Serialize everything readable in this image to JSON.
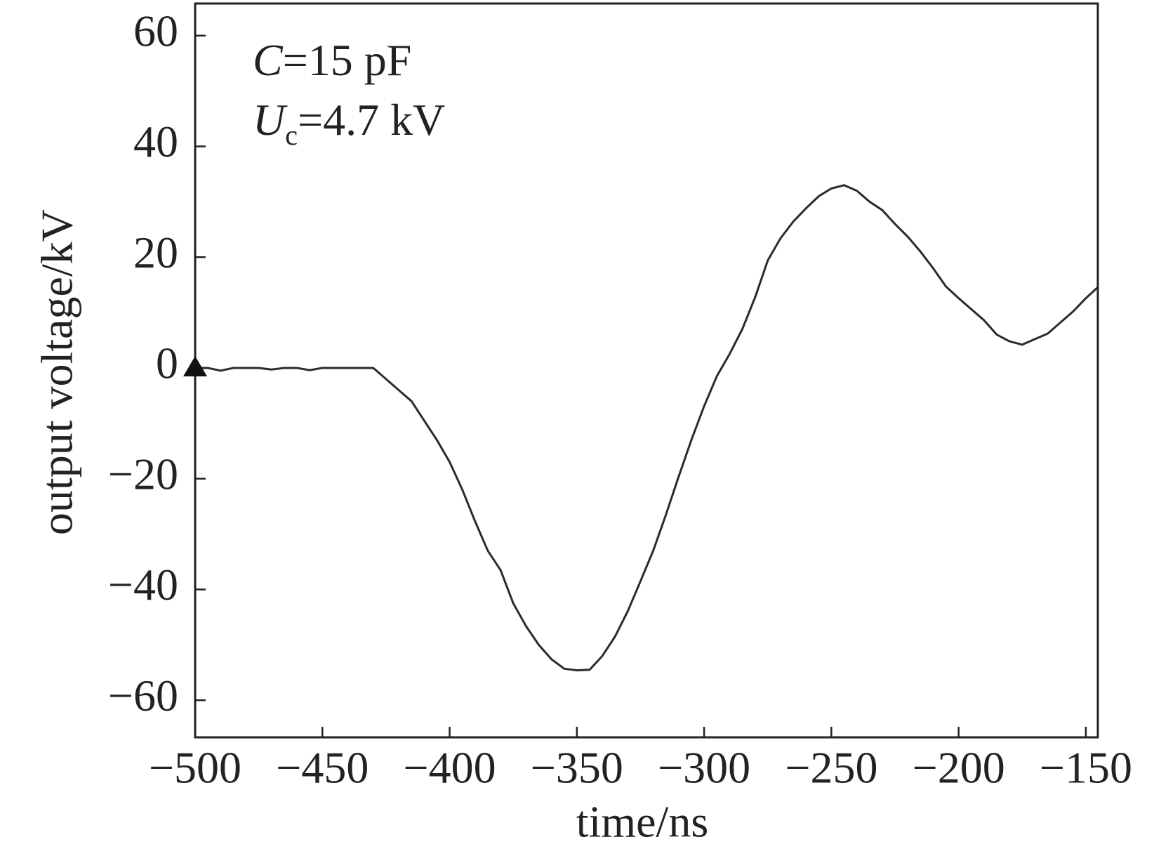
{
  "chart_data": {
    "type": "line",
    "x_label": "time/ns",
    "y_label": "output voltage/kV",
    "annotations": [
      {
        "italic": "C",
        "text": "=15 pF"
      },
      {
        "italic": "U",
        "sub": "c",
        "text": "=4.7 kV"
      }
    ],
    "marker": {
      "x": -500,
      "y": 0,
      "shape": "triangle"
    },
    "x": [
      -500,
      -495,
      -490,
      -485,
      -480,
      -475,
      -470,
      -465,
      -460,
      -455,
      -450,
      -445,
      -440,
      -435,
      -430,
      -425,
      -420,
      -415,
      -410,
      -405,
      -400,
      -395,
      -390,
      -385,
      -380,
      -375,
      -370,
      -365,
      -360,
      -355,
      -350,
      -345,
      -340,
      -335,
      -330,
      -325,
      -320,
      -315,
      -310,
      -305,
      -300,
      -295,
      -290,
      -285,
      -280,
      -275,
      -270,
      -265,
      -260,
      -255,
      -250,
      -245,
      -240,
      -235,
      -230,
      -225,
      -220,
      -215,
      -210,
      -205,
      -200,
      -195,
      -190,
      -185,
      -180,
      -175,
      -170,
      -165,
      -160,
      -155,
      -150,
      -145
    ],
    "series": [
      {
        "color": "#2b2b2b",
        "values": [
          0,
          0,
          -0.5,
          0,
          0,
          0,
          -0.3,
          0,
          0,
          -0.4,
          0,
          0,
          0,
          0,
          0,
          -2,
          -4,
          -6,
          -9.5,
          -13,
          -17,
          -22,
          -27.7,
          -33,
          -36.5,
          -42.5,
          -46.6,
          -50,
          -52.6,
          -54.3,
          -54.6,
          -54.5,
          -52,
          -48.5,
          -43.9,
          -38.5,
          -33,
          -26.5,
          -19.6,
          -13,
          -6.9,
          -1.5,
          2.5,
          7,
          12.7,
          19.4,
          23.4,
          26.4,
          28.8,
          31,
          32.4,
          33,
          32,
          30,
          28.5,
          26,
          23.7,
          21,
          18,
          14.7,
          12.6,
          10.6,
          8.6,
          6,
          4.8,
          4.2,
          5.2,
          6.2,
          8.2,
          10.2,
          12.6,
          14.7
        ]
      }
    ],
    "xlim": [
      -500,
      -145.3
    ],
    "ylim": [
      -66.7,
      65.8
    ],
    "xticks": [
      {
        "value": -500,
        "label": "−500"
      },
      {
        "value": -450,
        "label": "−450"
      },
      {
        "value": -400,
        "label": "−400"
      },
      {
        "value": -350,
        "label": "−350"
      },
      {
        "value": -300,
        "label": "−300"
      },
      {
        "value": -250,
        "label": "−250"
      },
      {
        "value": -200,
        "label": "−200"
      },
      {
        "value": -150,
        "label": "−150"
      }
    ],
    "yticks": [
      {
        "value": -60,
        "label": "−60"
      },
      {
        "value": -40,
        "label": "−40"
      },
      {
        "value": -20,
        "label": "−20"
      },
      0,
      20,
      40,
      60
    ],
    "grid": false
  }
}
